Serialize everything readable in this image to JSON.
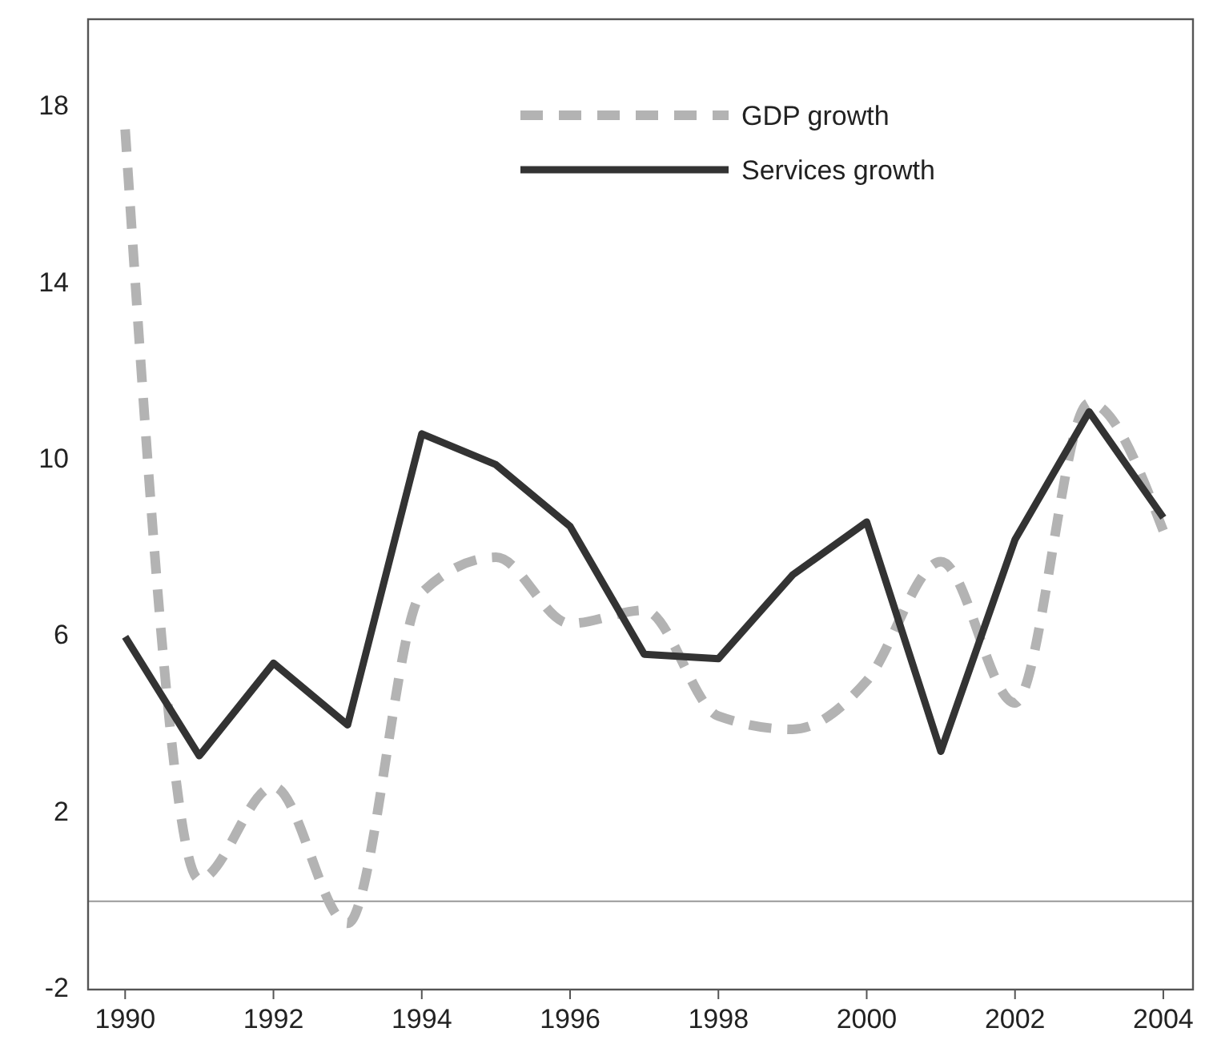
{
  "chart_data": {
    "type": "line",
    "x": [
      1990,
      1991,
      1992,
      1993,
      1994,
      1995,
      1996,
      1997,
      1998,
      1999,
      2000,
      2001,
      2002,
      2003,
      2004
    ],
    "series": [
      {
        "name": "GDP growth",
        "color": "#b3b3b3",
        "line_style": "dashed",
        "values": [
          17.5,
          0.5,
          2.6,
          -0.5,
          7.0,
          7.8,
          6.3,
          6.6,
          4.2,
          3.9,
          5.0,
          7.7,
          4.5,
          11.3,
          8.4
        ]
      },
      {
        "name": "Services growth",
        "color": "#333333",
        "line_style": "solid",
        "values": [
          6.0,
          3.3,
          5.4,
          4.0,
          10.6,
          9.9,
          8.5,
          5.6,
          5.5,
          7.4,
          8.6,
          3.4,
          8.2,
          11.1,
          8.7
        ]
      }
    ],
    "xlim": [
      1989.5,
      2004.4
    ],
    "xticks": [
      1990,
      1992,
      1994,
      1996,
      1998,
      2000,
      2002,
      2004
    ],
    "ylim": [
      -2,
      20
    ],
    "yticks": [
      -2,
      2,
      6,
      10,
      14,
      18
    ],
    "ref_lines": [
      {
        "axis": "y",
        "value": 0,
        "color": "#999999"
      }
    ],
    "grid": false,
    "legend": "top right",
    "marker": "none"
  }
}
